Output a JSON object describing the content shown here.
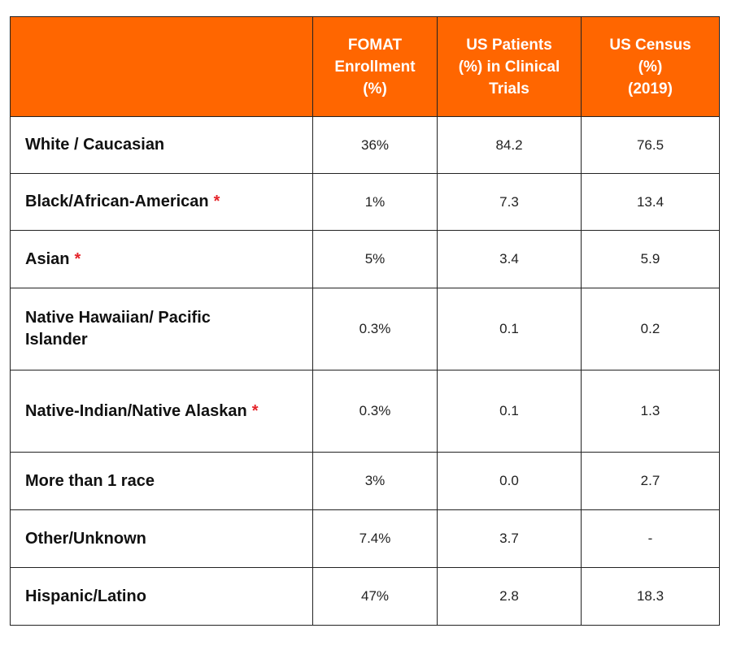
{
  "table": {
    "headers": [
      [],
      [
        "FOMAT",
        "Enrollment",
        "(%)"
      ],
      [
        "US Patients",
        "(%) in Clinical",
        "Trials"
      ],
      [
        "US Census",
        "(%)",
        "(2019)"
      ]
    ],
    "rows": [
      {
        "label": [
          "White / Caucasian"
        ],
        "marked": false,
        "values": [
          "36%",
          "84.2",
          "76.5"
        ]
      },
      {
        "label": [
          "Black/African-American"
        ],
        "marked": true,
        "values": [
          "1%",
          "7.3",
          "13.4"
        ]
      },
      {
        "label": [
          "Asian"
        ],
        "marked": true,
        "values": [
          "5%",
          "3.4",
          "5.9"
        ]
      },
      {
        "label": [
          "Native Hawaiian/ Pacific",
          "Islander"
        ],
        "marked": false,
        "values": [
          "0.3%",
          "0.1",
          "0.2"
        ]
      },
      {
        "label": [
          "Native-Indian/Native Alaskan"
        ],
        "marked": true,
        "values": [
          "0.3%",
          "0.1",
          "1.3"
        ]
      },
      {
        "label": [
          "More than 1 race"
        ],
        "marked": false,
        "values": [
          "3%",
          "0.0",
          "2.7"
        ]
      },
      {
        "label": [
          "Other/Unknown"
        ],
        "marked": false,
        "values": [
          "7.4%",
          "3.7",
          "-"
        ]
      },
      {
        "label": [
          "Hispanic/Latino"
        ],
        "marked": false,
        "values": [
          "47%",
          "2.8",
          "18.3"
        ]
      }
    ],
    "marker": "*",
    "colors": {
      "header_bg": "#ff6600",
      "header_text": "#ffffff",
      "marker": "#e5242a",
      "border": "#222222"
    }
  }
}
